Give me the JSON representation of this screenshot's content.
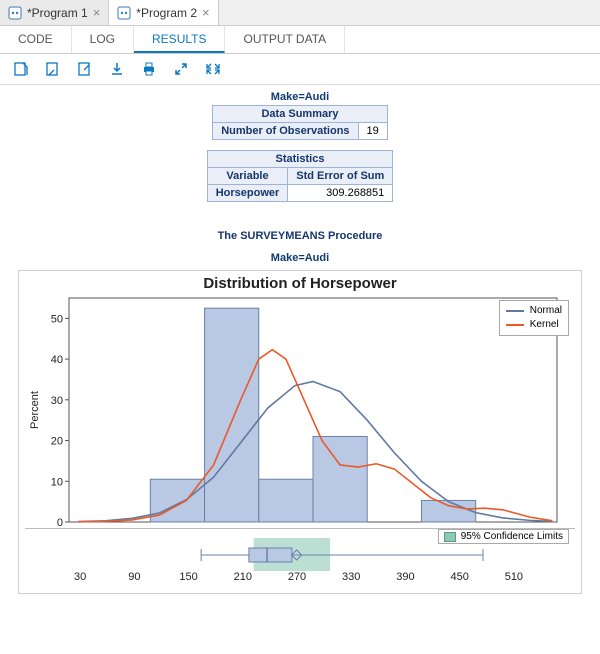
{
  "file_tabs": [
    {
      "label": "*Program 1",
      "active": false
    },
    {
      "label": "*Program 2",
      "active": true
    }
  ],
  "sub_tabs": {
    "code": "CODE",
    "log": "LOG",
    "results": "RESULTS",
    "output": "OUTPUT DATA",
    "active": "results"
  },
  "make_line": "Make=Audi",
  "data_summary": {
    "title": "Data Summary",
    "row_label": "Number of Observations",
    "row_value": "19"
  },
  "statistics": {
    "title": "Statistics",
    "col1": "Variable",
    "col2": "Std Error of Sum",
    "row_label": "Horsepower",
    "row_value": "309.268851"
  },
  "proc_title": "The SURVEYMEANS Procedure",
  "chart": {
    "title": "Distribution of Horsepower",
    "y_label": "Percent",
    "y_ticks": [
      0,
      10,
      20,
      30,
      40,
      50
    ],
    "y_max": 55,
    "x_ticks": [
      30,
      90,
      150,
      210,
      270,
      330,
      390,
      450,
      510
    ],
    "x_min": 0,
    "x_max": 540,
    "bin_width": 60,
    "bars": [
      {
        "x": 150,
        "h": 10.5
      },
      {
        "x": 210,
        "h": 52.5
      },
      {
        "x": 270,
        "h": 10.5
      },
      {
        "x": 330,
        "h": 21.0
      },
      {
        "x": 450,
        "h": 5.3
      }
    ],
    "colors": {
      "bar_fill": "#b9c8e3",
      "bar_stroke": "#6a80a8",
      "normal": "#5f7aa1",
      "kernel": "#e85a2a",
      "grid": "#bbbbbb",
      "axis": "#555555",
      "ci_fill": "#8fc9b6",
      "ci_stroke": "#5a9e86",
      "box_stroke": "#6a80a8"
    },
    "normal_curve": [
      [
        10,
        0.1
      ],
      [
        40,
        0.3
      ],
      [
        70,
        0.9
      ],
      [
        100,
        2.2
      ],
      [
        130,
        5.5
      ],
      [
        160,
        11
      ],
      [
        190,
        19.5
      ],
      [
        220,
        28
      ],
      [
        250,
        33.5
      ],
      [
        270,
        34.5
      ],
      [
        300,
        32
      ],
      [
        330,
        25
      ],
      [
        360,
        17
      ],
      [
        390,
        10
      ],
      [
        420,
        5
      ],
      [
        450,
        2.3
      ],
      [
        480,
        1
      ],
      [
        510,
        0.4
      ],
      [
        535,
        0.15
      ]
    ],
    "kernel_curve": [
      [
        10,
        0.05
      ],
      [
        40,
        0.15
      ],
      [
        70,
        0.5
      ],
      [
        100,
        1.7
      ],
      [
        130,
        5.3
      ],
      [
        160,
        14
      ],
      [
        190,
        30
      ],
      [
        210,
        40
      ],
      [
        225,
        42.3
      ],
      [
        240,
        40
      ],
      [
        260,
        30
      ],
      [
        280,
        20
      ],
      [
        300,
        14
      ],
      [
        320,
        13.5
      ],
      [
        340,
        14.3
      ],
      [
        360,
        13
      ],
      [
        380,
        9.5
      ],
      [
        400,
        6
      ],
      [
        420,
        4
      ],
      [
        440,
        3.2
      ],
      [
        460,
        3.4
      ],
      [
        480,
        3
      ],
      [
        510,
        1.2
      ],
      [
        535,
        0.3
      ]
    ],
    "legend": {
      "normal": "Normal",
      "kernel": "Kernel"
    },
    "boxplot": {
      "whisker_lo": 155,
      "q1": 205,
      "median": 224,
      "q3": 250,
      "whisker_hi": 450,
      "mean": 255,
      "ci_lo": 210,
      "ci_hi": 290,
      "ci_label": "95% Confidence Limits"
    }
  }
}
